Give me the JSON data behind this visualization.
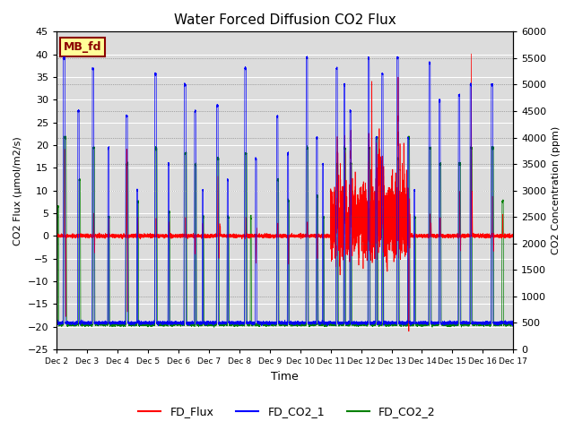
{
  "title": "Water Forced Diffusion CO2 Flux",
  "ylabel_left": "CO2 Flux (μmol/m2/s)",
  "ylabel_right": "CO2 Concentration (ppm)",
  "xlabel": "Time",
  "ylim_left": [
    -25,
    45
  ],
  "ylim_right": [
    0,
    6000
  ],
  "xtick_labels": [
    "Dec 2",
    "Dec 3",
    "Dec 4",
    "Dec 5",
    "Dec 6",
    "Dec 7",
    "Dec 8",
    "Dec 9",
    "Dec 10",
    "Dec 11",
    "Dec 12",
    "Dec 13",
    "Dec 14",
    "Dec 15",
    "Dec 16",
    "Dec 17"
  ],
  "legend_entries": [
    "FD_Flux",
    "FD_CO2_1",
    "FD_CO2_2"
  ],
  "legend_colors": [
    "red",
    "blue",
    "green"
  ],
  "label_text": "MB_fd",
  "label_bg": "#FFFF99",
  "label_border": "#8B0000",
  "label_text_color": "#8B0000",
  "plot_bg": "#DCDCDC",
  "flux_color": "red",
  "co2_1_color": "blue",
  "co2_2_color": "green",
  "n_points": 7200,
  "days": 15,
  "seed": 12345
}
